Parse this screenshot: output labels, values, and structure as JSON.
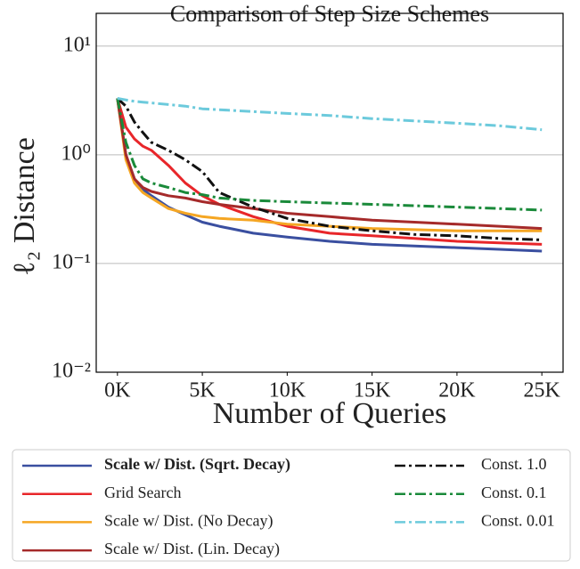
{
  "chart_data": {
    "type": "line",
    "title": "Comparison of Step Size Schemes",
    "xlabel": "Number of Queries",
    "ylabel": "ℓ₂ Distance",
    "yscale": "log",
    "grid": true,
    "xlim": [
      -1250,
      26250
    ],
    "ylim": [
      0.01,
      20
    ],
    "xticks": [
      {
        "value": 0,
        "label": "0K"
      },
      {
        "value": 5000,
        "label": "5K"
      },
      {
        "value": 10000,
        "label": "10K"
      },
      {
        "value": 15000,
        "label": "15K"
      },
      {
        "value": 20000,
        "label": "20K"
      },
      {
        "value": 25000,
        "label": "25K"
      }
    ],
    "yticks": [
      {
        "value": 0.01,
        "label": "10⁻²"
      },
      {
        "value": 0.1,
        "label": "10⁻¹"
      },
      {
        "value": 1,
        "label": "10⁰"
      },
      {
        "value": 10,
        "label": "10¹"
      }
    ],
    "x": [
      0,
      500,
      1000,
      1500,
      2000,
      3000,
      4000,
      5000,
      6000,
      8000,
      10000,
      12500,
      15000,
      17500,
      20000,
      22500,
      25000
    ],
    "series": [
      {
        "name": "Scale w/ Dist. (Sqrt. Decay)",
        "color": "#3a4fa0",
        "linestyle": "solid",
        "bold": true,
        "values": [
          3.3,
          1.0,
          0.6,
          0.48,
          0.42,
          0.33,
          0.28,
          0.24,
          0.22,
          0.19,
          0.175,
          0.16,
          0.15,
          0.145,
          0.14,
          0.135,
          0.13
        ]
      },
      {
        "name": "Grid Search",
        "color": "#e8262a",
        "linestyle": "solid",
        "values": [
          3.3,
          1.8,
          1.4,
          1.2,
          1.1,
          0.8,
          0.55,
          0.42,
          0.35,
          0.27,
          0.22,
          0.19,
          0.18,
          0.17,
          0.16,
          0.155,
          0.15
        ]
      },
      {
        "name": "Scale w/ Dist. (No Decay)",
        "color": "#f5a623",
        "linestyle": "solid",
        "values": [
          3.3,
          0.9,
          0.55,
          0.45,
          0.4,
          0.32,
          0.29,
          0.27,
          0.26,
          0.25,
          0.23,
          0.22,
          0.21,
          0.205,
          0.2,
          0.2,
          0.2
        ]
      },
      {
        "name": "Scale w/ Dist. (Lin. Decay)",
        "color": "#a52a2a",
        "linestyle": "solid",
        "values": [
          3.3,
          1.0,
          0.6,
          0.5,
          0.46,
          0.42,
          0.4,
          0.37,
          0.35,
          0.32,
          0.29,
          0.27,
          0.25,
          0.24,
          0.23,
          0.22,
          0.21
        ]
      },
      {
        "name": "Const. 1.0",
        "color": "#111111",
        "linestyle": "dashdot",
        "values": [
          3.3,
          2.8,
          2.0,
          1.6,
          1.3,
          1.1,
          0.9,
          0.7,
          0.45,
          0.33,
          0.26,
          0.22,
          0.2,
          0.185,
          0.18,
          0.17,
          0.165
        ]
      },
      {
        "name": "Const. 0.1",
        "color": "#1a8a3a",
        "linestyle": "dashdot",
        "values": [
          3.3,
          1.3,
          0.8,
          0.6,
          0.55,
          0.5,
          0.45,
          0.43,
          0.4,
          0.38,
          0.37,
          0.36,
          0.35,
          0.34,
          0.33,
          0.32,
          0.31
        ]
      },
      {
        "name": "Const. 0.01",
        "color": "#6ccadc",
        "linestyle": "dashdot",
        "values": [
          3.3,
          3.2,
          3.1,
          3.05,
          3.0,
          2.9,
          2.8,
          2.65,
          2.6,
          2.5,
          2.4,
          2.3,
          2.15,
          2.05,
          1.95,
          1.85,
          1.7
        ]
      }
    ]
  }
}
